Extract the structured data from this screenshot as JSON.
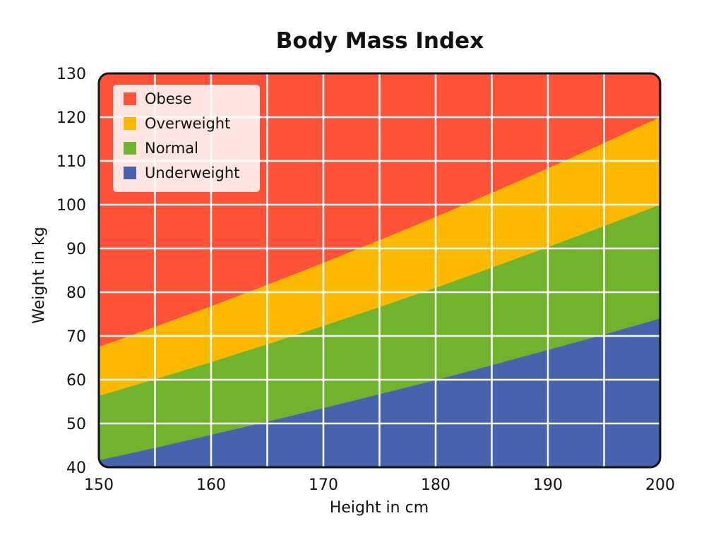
{
  "chart_data": {
    "type": "area",
    "title": "Body Mass Index",
    "xlabel": "Height in cm",
    "ylabel": "Weight in kg",
    "xlim": [
      150,
      200
    ],
    "ylim": [
      40,
      130
    ],
    "xticks": [
      150,
      160,
      170,
      180,
      190,
      200
    ],
    "yticks": [
      40,
      50,
      60,
      70,
      80,
      90,
      100,
      110,
      120,
      130
    ],
    "grid": true,
    "legend_placement": "top-left",
    "x": [
      150,
      155,
      160,
      165,
      170,
      175,
      180,
      185,
      190,
      195,
      200
    ],
    "boundaries": [
      {
        "between": "Underweight/Normal",
        "values": [
          41.6,
          44.4,
          47.4,
          50.4,
          53.5,
          56.7,
          59.9,
          63.3,
          66.8,
          70.3,
          74.0
        ]
      },
      {
        "between": "Normal/Overweight",
        "values": [
          56.3,
          60.1,
          64.0,
          68.1,
          72.3,
          76.6,
          81.0,
          85.6,
          90.3,
          95.1,
          100.0
        ]
      },
      {
        "between": "Overweight/Obese",
        "values": [
          67.5,
          72.1,
          76.8,
          81.7,
          86.7,
          91.9,
          97.2,
          102.7,
          108.3,
          114.1,
          120.0
        ]
      }
    ],
    "series": [
      {
        "name": "Obese",
        "color": "#FF5238"
      },
      {
        "name": "Overweight",
        "color": "#FDB900"
      },
      {
        "name": "Normal",
        "color": "#6FB42C"
      },
      {
        "name": "Underweight",
        "color": "#4564AD"
      }
    ]
  }
}
